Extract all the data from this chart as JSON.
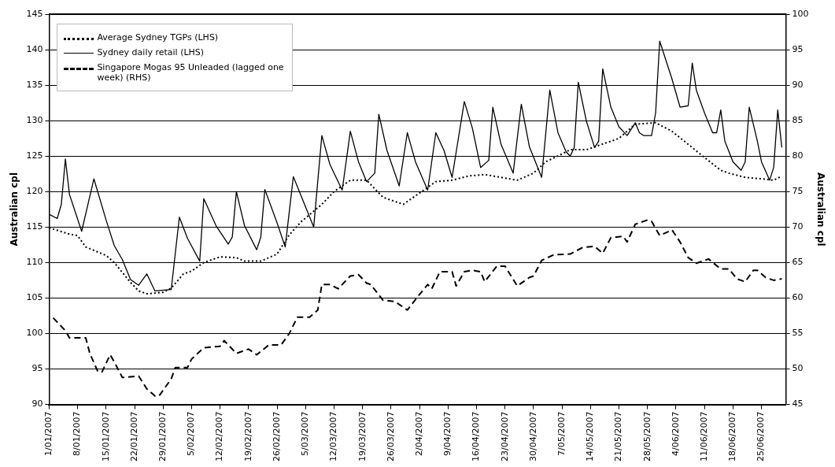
{
  "chart_data": {
    "type": "line",
    "ylabel": "Australian cpl",
    "y2label": "Australian cpl",
    "xlim": [
      "2007-01-01",
      "2007-07-01"
    ],
    "xticks": [
      {
        "value": "2007-01-01",
        "label": "1/01/2007"
      },
      {
        "value": "2007-01-08",
        "label": "8/01/2007"
      },
      {
        "value": "2007-01-15",
        "label": "15/01/2007"
      },
      {
        "value": "2007-01-22",
        "label": "22/01/2007"
      },
      {
        "value": "2007-01-29",
        "label": "29/01/2007"
      },
      {
        "value": "2007-02-05",
        "label": "5/02/2007"
      },
      {
        "value": "2007-02-12",
        "label": "12/02/2007"
      },
      {
        "value": "2007-02-19",
        "label": "19/02/2007"
      },
      {
        "value": "2007-02-26",
        "label": "26/02/2007"
      },
      {
        "value": "2007-03-05",
        "label": "5/03/2007"
      },
      {
        "value": "2007-03-12",
        "label": "12/03/2007"
      },
      {
        "value": "2007-03-19",
        "label": "19/03/2007"
      },
      {
        "value": "2007-03-26",
        "label": "26/03/2007"
      },
      {
        "value": "2007-04-02",
        "label": "2/04/2007"
      },
      {
        "value": "2007-04-09",
        "label": "9/04/2007"
      },
      {
        "value": "2007-04-16",
        "label": "16/04/2007"
      },
      {
        "value": "2007-04-23",
        "label": "23/04/2007"
      },
      {
        "value": "2007-04-30",
        "label": "30/04/2007"
      },
      {
        "value": "2007-05-07",
        "label": "7/05/2007"
      },
      {
        "value": "2007-05-14",
        "label": "14/05/2007"
      },
      {
        "value": "2007-05-21",
        "label": "21/05/2007"
      },
      {
        "value": "2007-05-28",
        "label": "28/05/2007"
      },
      {
        "value": "2007-06-04",
        "label": "4/06/2007"
      },
      {
        "value": "2007-06-11",
        "label": "11/06/2007"
      },
      {
        "value": "2007-06-18",
        "label": "18/06/2007"
      },
      {
        "value": "2007-06-25",
        "label": "25/06/2007"
      }
    ],
    "ylim": [
      90,
      145
    ],
    "yticks": [
      90,
      95,
      100,
      105,
      110,
      115,
      120,
      125,
      130,
      135,
      140,
      145
    ],
    "y2lim": [
      45,
      100
    ],
    "y2ticks": [
      45,
      50,
      55,
      60,
      65,
      70,
      75,
      80,
      85,
      90,
      95,
      100
    ],
    "grid": "y",
    "legend": "top left",
    "series": [
      {
        "name": "Average Sydney TGPs (LHS)",
        "color": "#000000",
        "line_style": "dotted",
        "x": [
          "2007-01-01",
          "2007-01-06",
          "2007-01-08",
          "2007-01-10",
          "2007-01-15",
          "2007-01-17",
          "2007-01-21",
          "2007-01-23",
          "2007-01-25",
          "2007-01-29",
          "2007-01-31",
          "2007-02-03",
          "2007-02-05",
          "2007-02-08",
          "2007-02-12",
          "2007-02-16",
          "2007-02-18",
          "2007-02-22",
          "2007-02-26",
          "2007-03-01",
          "2007-03-04",
          "2007-03-09",
          "2007-03-12",
          "2007-03-16",
          "2007-03-20",
          "2007-03-24",
          "2007-03-29",
          "2007-04-03",
          "2007-04-06",
          "2007-04-10",
          "2007-04-14",
          "2007-04-18",
          "2007-04-22",
          "2007-04-26",
          "2007-04-30",
          "2007-05-03",
          "2007-05-07",
          "2007-05-09",
          "2007-05-13",
          "2007-05-17",
          "2007-05-21",
          "2007-05-25",
          "2007-05-30",
          "2007-06-03",
          "2007-06-08",
          "2007-06-11",
          "2007-06-15",
          "2007-06-17",
          "2007-06-21",
          "2007-06-25",
          "2007-06-28",
          "2007-06-30"
        ],
        "values": [
          114.9,
          114,
          113.8,
          112.2,
          111,
          110,
          107.2,
          106,
          105.6,
          105.8,
          106.4,
          108.4,
          108.8,
          110,
          110.8,
          110.7,
          110.2,
          110.2,
          111.2,
          113.9,
          115.8,
          118.2,
          120,
          121.6,
          121.6,
          119.2,
          118.2,
          120.2,
          121.4,
          121.6,
          122.2,
          122.4,
          122,
          121.6,
          122.6,
          124.2,
          125.3,
          125.9,
          125.9,
          126.7,
          127.5,
          129.5,
          129.7,
          128.5,
          126.2,
          124.8,
          123,
          122.6,
          122,
          121.8,
          121.6,
          122.2
        ]
      },
      {
        "name": "Sydney daily retail (LHS)",
        "color": "#000000",
        "line_style": "solid",
        "x": [
          "2007-01-01",
          "2007-01-03",
          "2007-01-04",
          "2007-01-05",
          "2007-01-06",
          "2007-01-09",
          "2007-01-12",
          "2007-01-15",
          "2007-01-17",
          "2007-01-19",
          "2007-01-21",
          "2007-01-23",
          "2007-01-25",
          "2007-01-27",
          "2007-01-31",
          "2007-02-02",
          "2007-02-04",
          "2007-02-07",
          "2007-02-08",
          "2007-02-11",
          "2007-02-14",
          "2007-02-15",
          "2007-02-16",
          "2007-02-18",
          "2007-02-21",
          "2007-02-22",
          "2007-02-23",
          "2007-02-26",
          "2007-02-28",
          "2007-03-02",
          "2007-03-07",
          "2007-03-09",
          "2007-03-11",
          "2007-03-14",
          "2007-03-16",
          "2007-03-18",
          "2007-03-20",
          "2007-03-22",
          "2007-03-23",
          "2007-03-25",
          "2007-03-28",
          "2007-03-30",
          "2007-04-01",
          "2007-04-04",
          "2007-04-06",
          "2007-04-08",
          "2007-04-10",
          "2007-04-13",
          "2007-04-15",
          "2007-04-17",
          "2007-04-19",
          "2007-04-20",
          "2007-04-22",
          "2007-04-25",
          "2007-04-27",
          "2007-04-29",
          "2007-05-02",
          "2007-05-04",
          "2007-05-06",
          "2007-05-08",
          "2007-05-09",
          "2007-05-10",
          "2007-05-11",
          "2007-05-13",
          "2007-05-15",
          "2007-05-16",
          "2007-05-17",
          "2007-05-19",
          "2007-05-21",
          "2007-05-23",
          "2007-05-25",
          "2007-05-26",
          "2007-05-27",
          "2007-05-29",
          "2007-05-30",
          "2007-05-31",
          "2007-06-03",
          "2007-06-05",
          "2007-06-07",
          "2007-06-08",
          "2007-06-09",
          "2007-06-11",
          "2007-06-13",
          "2007-06-14",
          "2007-06-15",
          "2007-06-16",
          "2007-06-18",
          "2007-06-20",
          "2007-06-21",
          "2007-06-22",
          "2007-06-24",
          "2007-06-25",
          "2007-06-27",
          "2007-06-28",
          "2007-06-29",
          "2007-06-30"
        ],
        "values": [
          116.8,
          116.2,
          118.2,
          124.6,
          119.6,
          114.4,
          121.8,
          116,
          112.4,
          110.4,
          107.6,
          106.8,
          108.4,
          106,
          106.2,
          116.4,
          113.4,
          110.2,
          119,
          115.2,
          112.6,
          113.6,
          120,
          115.2,
          111.8,
          113.6,
          120.3,
          115.6,
          112.2,
          122.1,
          115,
          127.9,
          123.8,
          120.2,
          128.5,
          124.2,
          121.4,
          122.6,
          130.9,
          125.8,
          120.8,
          128.3,
          124.2,
          120.2,
          128.3,
          125.8,
          122,
          132.7,
          128.9,
          123.4,
          124.4,
          131.9,
          126.7,
          122.6,
          132.3,
          126.3,
          122,
          134.3,
          128.3,
          125.6,
          125,
          126.2,
          135.4,
          129.9,
          126.2,
          127.1,
          137.3,
          131.9,
          129.1,
          127.9,
          129.7,
          128.3,
          127.9,
          127.9,
          131.1,
          141.2,
          135.9,
          131.9,
          132.1,
          138.1,
          134.3,
          131.1,
          128.3,
          128.3,
          131.5,
          127.1,
          124.2,
          123,
          124.2,
          131.9,
          127.1,
          124.2,
          121.6,
          123.4,
          131.5,
          126.2
        ]
      },
      {
        "name": "Singapore Mogas 95 Unleaded (lagged one week) (RHS)",
        "color": "#000000",
        "line_style": "dashed",
        "axis": "y2",
        "x": [
          "2007-01-02",
          "2007-01-05",
          "2007-01-06",
          "2007-01-10",
          "2007-01-11",
          "2007-01-13",
          "2007-01-14",
          "2007-01-16",
          "2007-01-17",
          "2007-01-19",
          "2007-01-23",
          "2007-01-25",
          "2007-01-27",
          "2007-01-28",
          "2007-01-31",
          "2007-02-01",
          "2007-02-04",
          "2007-02-05",
          "2007-02-08",
          "2007-02-12",
          "2007-02-13",
          "2007-02-16",
          "2007-02-19",
          "2007-02-21",
          "2007-02-24",
          "2007-02-27",
          "2007-03-01",
          "2007-03-03",
          "2007-03-06",
          "2007-03-08",
          "2007-03-09",
          "2007-03-11",
          "2007-03-13",
          "2007-03-16",
          "2007-03-18",
          "2007-03-20",
          "2007-03-21",
          "2007-03-24",
          "2007-03-27",
          "2007-03-30",
          "2007-04-02",
          "2007-04-04",
          "2007-04-05",
          "2007-04-07",
          "2007-04-10",
          "2007-04-11",
          "2007-04-13",
          "2007-04-15",
          "2007-04-17",
          "2007-04-18",
          "2007-04-21",
          "2007-04-23",
          "2007-04-26",
          "2007-04-29",
          "2007-04-30",
          "2007-05-02",
          "2007-05-05",
          "2007-05-09",
          "2007-05-12",
          "2007-05-15",
          "2007-05-17",
          "2007-05-19",
          "2007-05-22",
          "2007-05-23",
          "2007-05-25",
          "2007-05-28",
          "2007-05-29",
          "2007-05-31",
          "2007-06-03",
          "2007-06-05",
          "2007-06-07",
          "2007-06-09",
          "2007-06-12",
          "2007-06-15",
          "2007-06-17",
          "2007-06-19",
          "2007-06-21",
          "2007-06-23",
          "2007-06-24",
          "2007-06-26",
          "2007-06-28",
          "2007-06-30"
        ],
        "values": [
          57.2,
          55.4,
          54.4,
          54.4,
          52.2,
          49.6,
          49.6,
          52,
          51,
          48.8,
          49,
          47.2,
          46.2,
          46.2,
          48.6,
          50.2,
          50.2,
          51.4,
          53,
          53.2,
          54,
          52.2,
          52.8,
          52,
          53.4,
          53.4,
          55,
          57.3,
          57.3,
          58.3,
          61.9,
          61.9,
          61.3,
          63.1,
          63.3,
          62.1,
          61.9,
          59.7,
          59.5,
          58.3,
          60.5,
          61.9,
          61.3,
          63.7,
          63.7,
          61.7,
          63.7,
          63.9,
          63.7,
          62.3,
          64.5,
          64.5,
          61.7,
          62.9,
          63.1,
          65.3,
          66.1,
          66.2,
          67.1,
          67.3,
          66.3,
          68.5,
          68.7,
          67.9,
          70.4,
          71,
          70.8,
          68.8,
          69.6,
          67.9,
          65.7,
          64.9,
          65.5,
          64.1,
          64.1,
          62.7,
          62.3,
          63.9,
          63.9,
          62.9,
          62.5,
          62.7
        ]
      }
    ]
  }
}
